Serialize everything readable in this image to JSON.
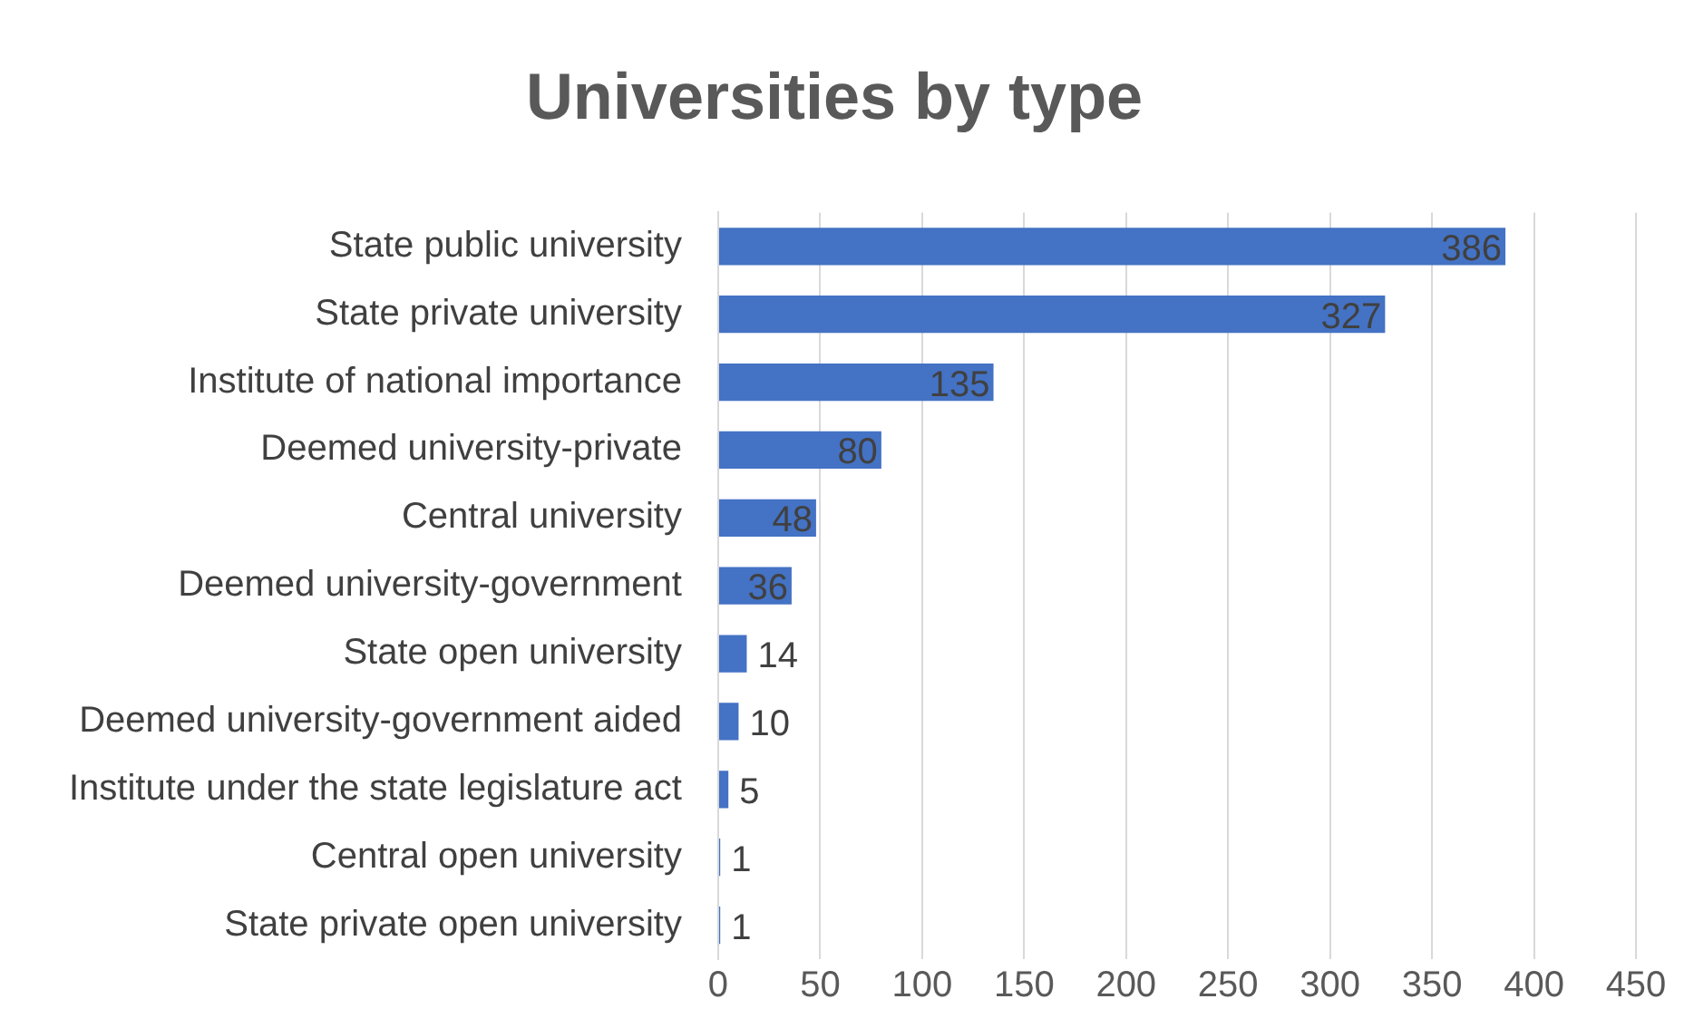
{
  "chart_data": {
    "type": "bar",
    "orientation": "horizontal",
    "title": "Universities by type",
    "categories": [
      "State public university",
      "State private university",
      "Institute of national importance",
      "Deemed university-private",
      "Central university",
      "Deemed university-government",
      "State open university",
      "Deemed university-government aided",
      "Institute under the state legislature act",
      "Central open university",
      "State private open university"
    ],
    "values": [
      386,
      327,
      135,
      80,
      48,
      36,
      14,
      10,
      5,
      1,
      1
    ],
    "color": "#4472c4",
    "xlim": [
      0,
      450
    ],
    "xticks": [
      0,
      50,
      100,
      150,
      200,
      250,
      300,
      350,
      400,
      450
    ],
    "grid": "x",
    "data_labels": true
  }
}
